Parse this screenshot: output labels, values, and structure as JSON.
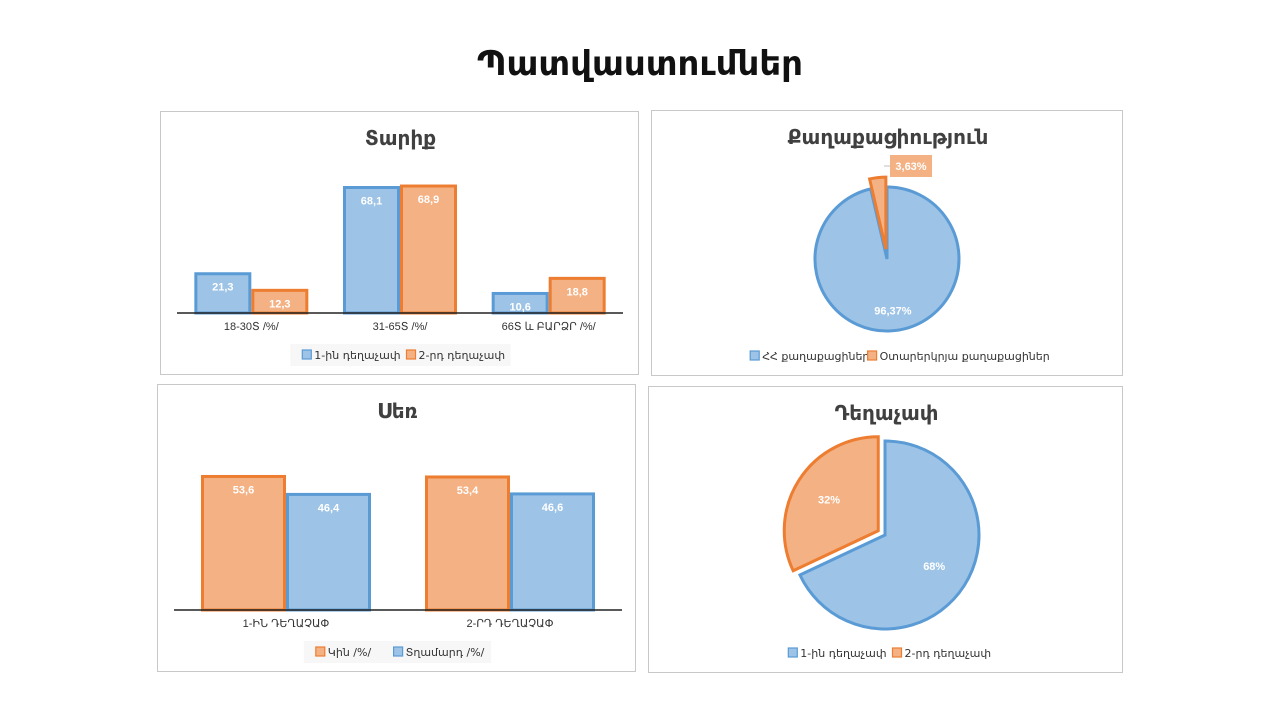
{
  "page": {
    "title": "Պատվաստումներ"
  },
  "colors": {
    "blue_fill": "#9dc3e6",
    "blue_stroke": "#5b9bd5",
    "orange_fill": "#f4b183",
    "orange_stroke": "#ed7d31",
    "axis": "#222222"
  },
  "chart_data": [
    {
      "id": "age",
      "type": "bar",
      "title": "Տարիք",
      "categories": [
        "18-30Տ /%/",
        "31-65Տ /%/",
        "66Տ և ԲԱՐՁՐ /%/"
      ],
      "series": [
        {
          "name": "1-ին դեղաչափ",
          "values": [
            21.3,
            68.1,
            10.6
          ],
          "labels": [
            "21,3",
            "68,1",
            "10,6"
          ],
          "color": "blue"
        },
        {
          "name": "2-րդ դեղաչափ",
          "values": [
            12.3,
            68.9,
            18.8
          ],
          "labels": [
            "12,3",
            "68,9",
            "18,8"
          ],
          "color": "orange"
        }
      ],
      "ylim": [
        0,
        70
      ],
      "legend": "bottom",
      "grid": false
    },
    {
      "id": "citizenship",
      "type": "pie",
      "title": "Քաղաքացիություն",
      "slices": [
        {
          "name": "ՀՀ քաղաքացիներ",
          "value": 96.37,
          "label": "96,37%",
          "color": "blue"
        },
        {
          "name": "Օտարերկրյա քաղաքացիներ",
          "value": 3.63,
          "label": "3,63%",
          "color": "orange"
        }
      ],
      "legend": "bottom"
    },
    {
      "id": "sex",
      "type": "bar",
      "title": "Սեռ",
      "categories": [
        "1-ԻՆ ԴԵՂԱՉԱՓ",
        "2-ՐԴ ԴԵՂԱՉԱՓ"
      ],
      "series": [
        {
          "name": "Կին  /%/",
          "values": [
            53.6,
            53.4
          ],
          "labels": [
            "53,6",
            "53,4"
          ],
          "color": "orange"
        },
        {
          "name": "Տղամարդ /%/",
          "values": [
            46.4,
            46.6
          ],
          "labels": [
            "46,4",
            "46,6"
          ],
          "color": "blue"
        }
      ],
      "ylim": [
        0,
        57
      ],
      "legend": "bottom",
      "grid": false
    },
    {
      "id": "dose",
      "type": "pie",
      "title": "Դեղաչափ",
      "slices": [
        {
          "name": "1-ին դեղաչափ",
          "value": 68,
          "label": "68%",
          "color": "blue"
        },
        {
          "name": "2-րդ դեղաչափ",
          "value": 32,
          "label": "32%",
          "color": "orange"
        }
      ],
      "legend": "bottom"
    }
  ]
}
